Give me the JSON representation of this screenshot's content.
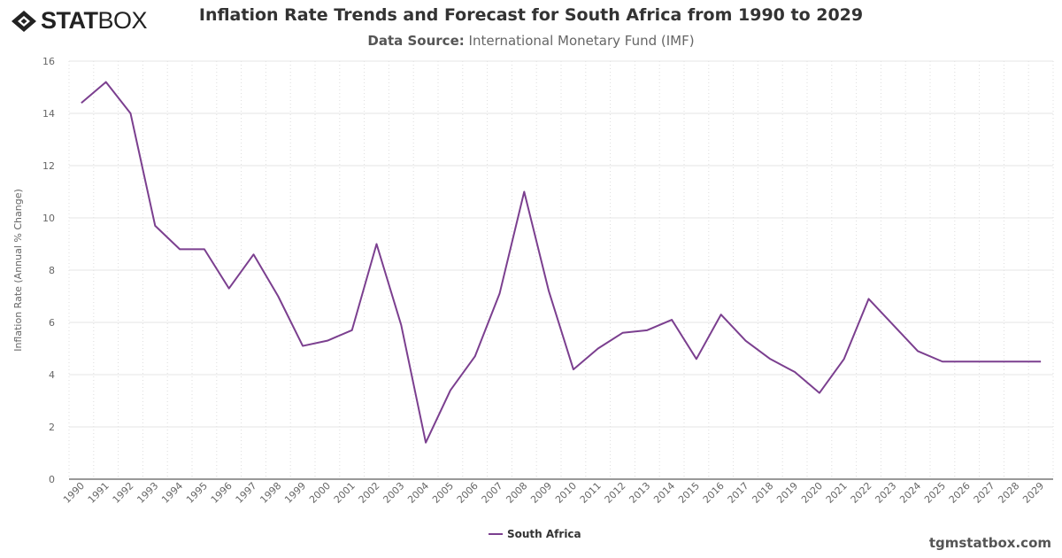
{
  "logo": {
    "text_bold": "STAT",
    "text_light": "BOX"
  },
  "header": {
    "title": "Inflation Rate Trends and Forecast for South Africa from 1990 to 2029",
    "subtitle_label": "Data Source:",
    "subtitle_value": "International Monetary Fund (IMF)"
  },
  "footer": {
    "site": "tgmstatbox.com"
  },
  "chart_data": {
    "type": "line",
    "title": "Inflation Rate Trends and Forecast for South Africa from 1990 to 2029",
    "xlabel": "",
    "ylabel": "Inflation Rate (Annual % Change)",
    "ylim": [
      0,
      16
    ],
    "yticks": [
      0,
      2,
      4,
      6,
      8,
      10,
      12,
      14,
      16
    ],
    "grid": true,
    "legend": "bottom-center",
    "categories": [
      "1990",
      "1991",
      "1992",
      "1993",
      "1994",
      "1995",
      "1996",
      "1997",
      "1998",
      "1999",
      "2000",
      "2001",
      "2002",
      "2003",
      "2004",
      "2005",
      "2006",
      "2007",
      "2008",
      "2009",
      "2010",
      "2011",
      "2012",
      "2013",
      "2014",
      "2015",
      "2016",
      "2017",
      "2018",
      "2019",
      "2020",
      "2021",
      "2022",
      "2023",
      "2024",
      "2025",
      "2026",
      "2027",
      "2028",
      "2029"
    ],
    "series": [
      {
        "name": "South Africa",
        "color": "#7b3f8f",
        "values": [
          14.4,
          15.2,
          14.0,
          9.7,
          8.8,
          8.8,
          7.3,
          8.6,
          7.0,
          5.1,
          5.3,
          5.7,
          9.0,
          5.9,
          1.4,
          3.4,
          4.7,
          7.1,
          11.0,
          7.2,
          4.2,
          5.0,
          5.6,
          5.7,
          6.1,
          4.6,
          6.3,
          5.3,
          4.6,
          4.1,
          3.3,
          4.6,
          6.9,
          5.9,
          4.9,
          4.5,
          4.5,
          4.5,
          4.5,
          4.5
        ]
      }
    ]
  }
}
